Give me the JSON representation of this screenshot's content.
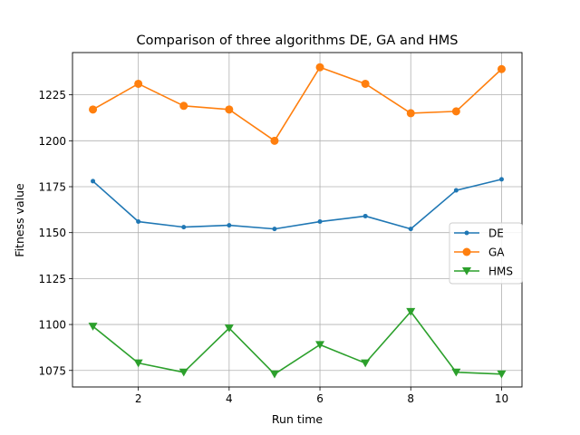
{
  "chart_data": {
    "type": "line",
    "title": "Comparison of three algorithms DE, GA and HMS",
    "xlabel": "Run time",
    "ylabel": "Fitness value",
    "x": [
      1,
      2,
      3,
      4,
      5,
      6,
      7,
      8,
      9,
      10
    ],
    "xlim": [
      0.55,
      10.45
    ],
    "ylim": [
      1066,
      1248
    ],
    "xticks": [
      2,
      4,
      6,
      8,
      10
    ],
    "yticks": [
      1075,
      1100,
      1125,
      1150,
      1175,
      1200,
      1225
    ],
    "grid": true,
    "legend": "center-right",
    "series": [
      {
        "name": "DE",
        "color": "#1f77b4",
        "marker": "circle-small",
        "values": [
          1178,
          1156,
          1153,
          1154,
          1152,
          1156,
          1159,
          1152,
          1173,
          1179
        ]
      },
      {
        "name": "GA",
        "color": "#ff7f0e",
        "marker": "circle",
        "values": [
          1217,
          1231,
          1219,
          1217,
          1200,
          1240,
          1231,
          1215,
          1216,
          1239
        ]
      },
      {
        "name": "HMS",
        "color": "#2ca02c",
        "marker": "triangle-down",
        "values": [
          1099,
          1079,
          1074,
          1098,
          1073,
          1089,
          1079,
          1107,
          1074,
          1073
        ]
      }
    ]
  }
}
